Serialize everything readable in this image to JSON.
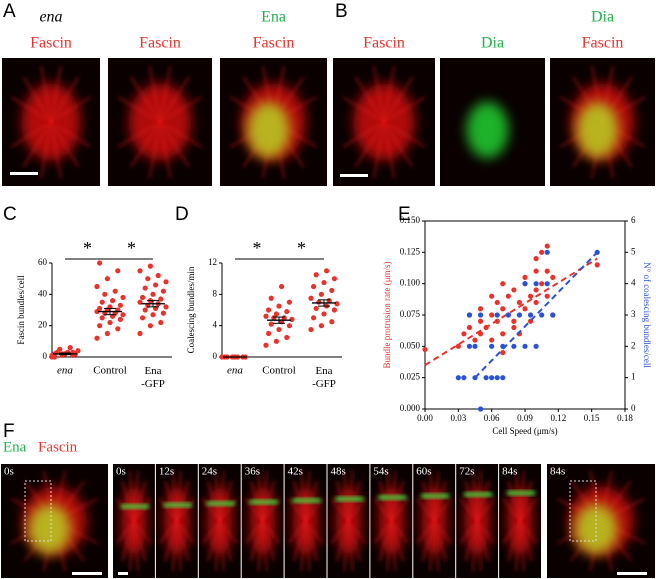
{
  "figure": {
    "A": {
      "label": "A",
      "images": [
        {
          "top": "ena",
          "title": "Fascin"
        },
        {
          "title": "Fascin"
        },
        {
          "top": "Ena",
          "title": "Fascin"
        }
      ]
    },
    "B": {
      "label": "B",
      "images": [
        {
          "title": "Fascin"
        },
        {
          "title": "Dia"
        },
        {
          "top": "Dia",
          "title": "Fascin"
        }
      ]
    },
    "F": {
      "label": "F",
      "legend": [
        "Ena",
        "Fascin"
      ],
      "frames": [
        "0s",
        "0s",
        "12s",
        "24s",
        "36s",
        "42s",
        "48s",
        "54s",
        "60s",
        "72s",
        "84s",
        "84s"
      ]
    }
  },
  "chart_data": [
    {
      "panel_label": "C",
      "type": "dot",
      "ylabel": "Fascin bundles/cell",
      "categories": [
        "ena",
        "Control",
        "Ena-GFP"
      ],
      "significance": [
        "*",
        "*"
      ],
      "color": "#e8322b",
      "ylim": [
        0,
        60
      ],
      "yticks": [
        0,
        20,
        40,
        60
      ],
      "values": [
        [
          0,
          1,
          1,
          2,
          2,
          2,
          3,
          3,
          4,
          5,
          6,
          1,
          2,
          3,
          0
        ],
        [
          12,
          15,
          18,
          20,
          22,
          24,
          25,
          26,
          27,
          28,
          28,
          29,
          30,
          30,
          31,
          32,
          33,
          35,
          36,
          38,
          40,
          42,
          45,
          50,
          55,
          60
        ],
        [
          15,
          20,
          22,
          25,
          27,
          28,
          30,
          31,
          32,
          33,
          34,
          35,
          36,
          37,
          38,
          40,
          42,
          44,
          46,
          48,
          50,
          52,
          55,
          58
        ]
      ],
      "means": [
        2,
        29,
        34
      ],
      "errors": [
        0.5,
        2,
        2
      ]
    },
    {
      "panel_label": "D",
      "type": "dot",
      "ylabel": "Coalescing bundles/min",
      "categories": [
        "ena",
        "Control",
        "Ena-GFP"
      ],
      "significance": [
        "*",
        "*"
      ],
      "color": "#e8322b",
      "ylim": [
        0,
        12
      ],
      "yticks": [
        0,
        4,
        8,
        12
      ],
      "values": [
        [
          0,
          0,
          0,
          0,
          0,
          0,
          0,
          0
        ],
        [
          1.5,
          2,
          2.5,
          3,
          3.5,
          4,
          4.2,
          4.5,
          4.8,
          5,
          5,
          5.2,
          5.5,
          5.8,
          6,
          6.5,
          7,
          7.5,
          9
        ],
        [
          3.5,
          4,
          4.5,
          5,
          5.5,
          6,
          6.2,
          6.5,
          6.8,
          7,
          7.2,
          7.5,
          8,
          8.5,
          9,
          9.5,
          10,
          10.5,
          11
        ]
      ],
      "means": [
        0,
        4.7,
        6.9
      ],
      "errors": [
        0,
        0.4,
        0.4
      ]
    },
    {
      "panel_label": "E",
      "type": "scatter",
      "xlabel": "Cell Speed (μm/s)",
      "ylabel": "Bundle protrusion rate (μm/s)",
      "y2label": "N° of coalescing bundles/cell",
      "xlim": [
        0,
        0.18
      ],
      "xticks": [
        {
          "value": 0,
          "label": "0.00"
        },
        {
          "value": 0.03,
          "label": "0.03"
        },
        {
          "value": 0.06,
          "label": "0.06"
        },
        {
          "value": 0.09,
          "label": "0.09"
        },
        {
          "value": 0.12,
          "label": "0.12"
        },
        {
          "value": 0.15,
          "label": "0.15"
        },
        {
          "value": 0.18,
          "label": "0.18"
        }
      ],
      "ylim": [
        0,
        0.15
      ],
      "yticks": [
        {
          "value": 0,
          "label": "0.000"
        },
        {
          "value": 0.025,
          "label": "0.025"
        },
        {
          "value": 0.05,
          "label": "0.050"
        },
        {
          "value": 0.075,
          "label": "0.075"
        },
        {
          "value": 0.1,
          "label": "0.100"
        },
        {
          "value": 0.125,
          "label": "0.125"
        },
        {
          "value": 0.15,
          "label": "0.150"
        }
      ],
      "y2lim": [
        0,
        6
      ],
      "y2ticks": [
        0,
        1,
        2,
        3,
        4,
        5,
        6
      ],
      "series": [
        {
          "color": "#e8322b",
          "x": [
            0,
            0.03,
            0.035,
            0.04,
            0.04,
            0.045,
            0.05,
            0.05,
            0.05,
            0.055,
            0.06,
            0.06,
            0.06,
            0.065,
            0.065,
            0.07,
            0.07,
            0.07,
            0.07,
            0.075,
            0.075,
            0.08,
            0.08,
            0.08,
            0.085,
            0.085,
            0.09,
            0.09,
            0.09,
            0.095,
            0.095,
            0.1,
            0.1,
            0.1,
            0.1,
            0.105,
            0.105,
            0.11,
            0.11,
            0.11,
            0.115,
            0.115,
            0.155
          ],
          "values": [
            0.0475,
            0.05,
            0.06,
            0.075,
            0.065,
            0.055,
            0.08,
            0.06,
            0.07,
            0.065,
            0.09,
            0.075,
            0.055,
            0.085,
            0.07,
            0.1,
            0.08,
            0.06,
            0.045,
            0.09,
            0.075,
            0.095,
            0.07,
            0.065,
            0.085,
            0.06,
            0.1,
            0.08,
            0.105,
            0.09,
            0.07,
            0.11,
            0.12,
            0.095,
            0.085,
            0.125,
            0.1,
            0.13,
            0.11,
            0.09,
            0.105,
            0.075,
            0.115
          ],
          "fit": {
            "x": [
              0,
              0.155
            ],
            "values": [
              0.035,
              0.12
            ]
          }
        },
        {
          "color": "#2a52d6",
          "axis": "y2",
          "x": [
            0.03,
            0.035,
            0.04,
            0.045,
            0.045,
            0.05,
            0.05,
            0.055,
            0.06,
            0.06,
            0.065,
            0.07,
            0.07,
            0.075,
            0.08,
            0.085,
            0.09,
            0.09,
            0.095,
            0.1,
            0.1,
            0.105,
            0.11,
            0.11,
            0.115,
            0.155,
            0.065,
            0.04
          ],
          "values": [
            1,
            1,
            3,
            2,
            1,
            0,
            3,
            1,
            2,
            1,
            3,
            2,
            1,
            3,
            2,
            3,
            4,
            2,
            3,
            4,
            2,
            3,
            4,
            5,
            3,
            5,
            1,
            2
          ],
          "fit": {
            "x": [
              0.045,
              0.155
            ],
            "values": [
              1,
              5
            ]
          }
        }
      ]
    }
  ]
}
